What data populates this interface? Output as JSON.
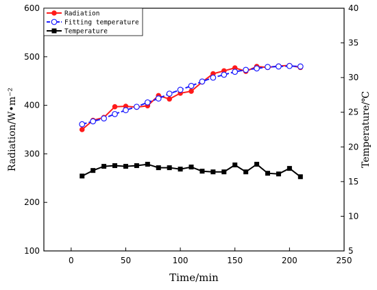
{
  "chart_data": {
    "type": "line",
    "xlabel": "Time/min",
    "ylabel_left": "Radiation/W•m⁻²",
    "ylabel_right": "Temperature/℃",
    "xlim": [
      -25,
      250
    ],
    "ylim_left": [
      100,
      600
    ],
    "ylim_right": [
      5,
      40
    ],
    "x_ticks": [
      0,
      50,
      100,
      150,
      200,
      250
    ],
    "y_ticks_left": [
      100,
      200,
      300,
      400,
      500,
      600
    ],
    "y_ticks_right": [
      5,
      10,
      15,
      20,
      25,
      30,
      35,
      40
    ],
    "legend_position": "top-left",
    "grid": false,
    "x": [
      10,
      20,
      30,
      40,
      50,
      60,
      70,
      80,
      90,
      100,
      110,
      120,
      130,
      140,
      150,
      160,
      170,
      180,
      190,
      200,
      210
    ],
    "series": [
      {
        "name": "Radiation",
        "axis": "left",
        "color": "#ff1a1a",
        "marker": "filled-circle",
        "line": "solid",
        "values": [
          350,
          369,
          375,
          397,
          398,
          396,
          399,
          420,
          413,
          425,
          429,
          448,
          465,
          471,
          477,
          470,
          480,
          478,
          481,
          482,
          478
        ]
      },
      {
        "name": "Fitting temperature",
        "axis": "left",
        "color": "#1a1aff",
        "marker": "open-circle",
        "line": "dashed",
        "values": [
          361,
          367,
          373,
          382,
          390,
          397,
          406,
          414,
          424,
          432,
          440,
          449,
          457,
          463,
          469,
          473,
          476,
          479,
          480,
          481,
          480
        ]
      },
      {
        "name": "Temperature",
        "axis": "right",
        "color": "#000000",
        "marker": "filled-square",
        "line": "solid",
        "values": [
          15.8,
          16.6,
          17.2,
          17.3,
          17.2,
          17.3,
          17.5,
          17.0,
          17.0,
          16.8,
          17.1,
          16.5,
          16.4,
          16.4,
          17.4,
          16.4,
          17.5,
          16.2,
          16.1,
          16.9,
          15.7
        ]
      }
    ]
  }
}
